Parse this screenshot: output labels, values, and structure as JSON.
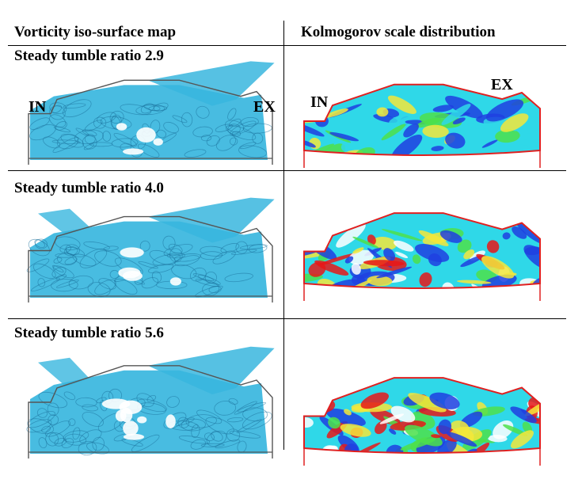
{
  "headers": {
    "left": "Vorticity iso-surface map",
    "right": "Kolmogorov scale distribution"
  },
  "rows": [
    {
      "title": "Steady tumble ratio 2.9"
    },
    {
      "title": "Steady tumble ratio 4.0"
    },
    {
      "title": "Steady tumble ratio 5.6"
    }
  ],
  "port_labels": {
    "intake": "IN",
    "exhaust": "EX"
  },
  "colors": {
    "vorticity": "#38b6de",
    "vorticity_dark": "#1a6f9a",
    "kolmogorov_low": "#1f3fe0",
    "kolmogorov_mid": "#2fd8e8",
    "kolmogorov_midhigh": "#4ee04a",
    "kolmogorov_high": "#f5e83a",
    "kolmogorov_peak": "#e81818",
    "chamber_outline": "#e02020"
  }
}
